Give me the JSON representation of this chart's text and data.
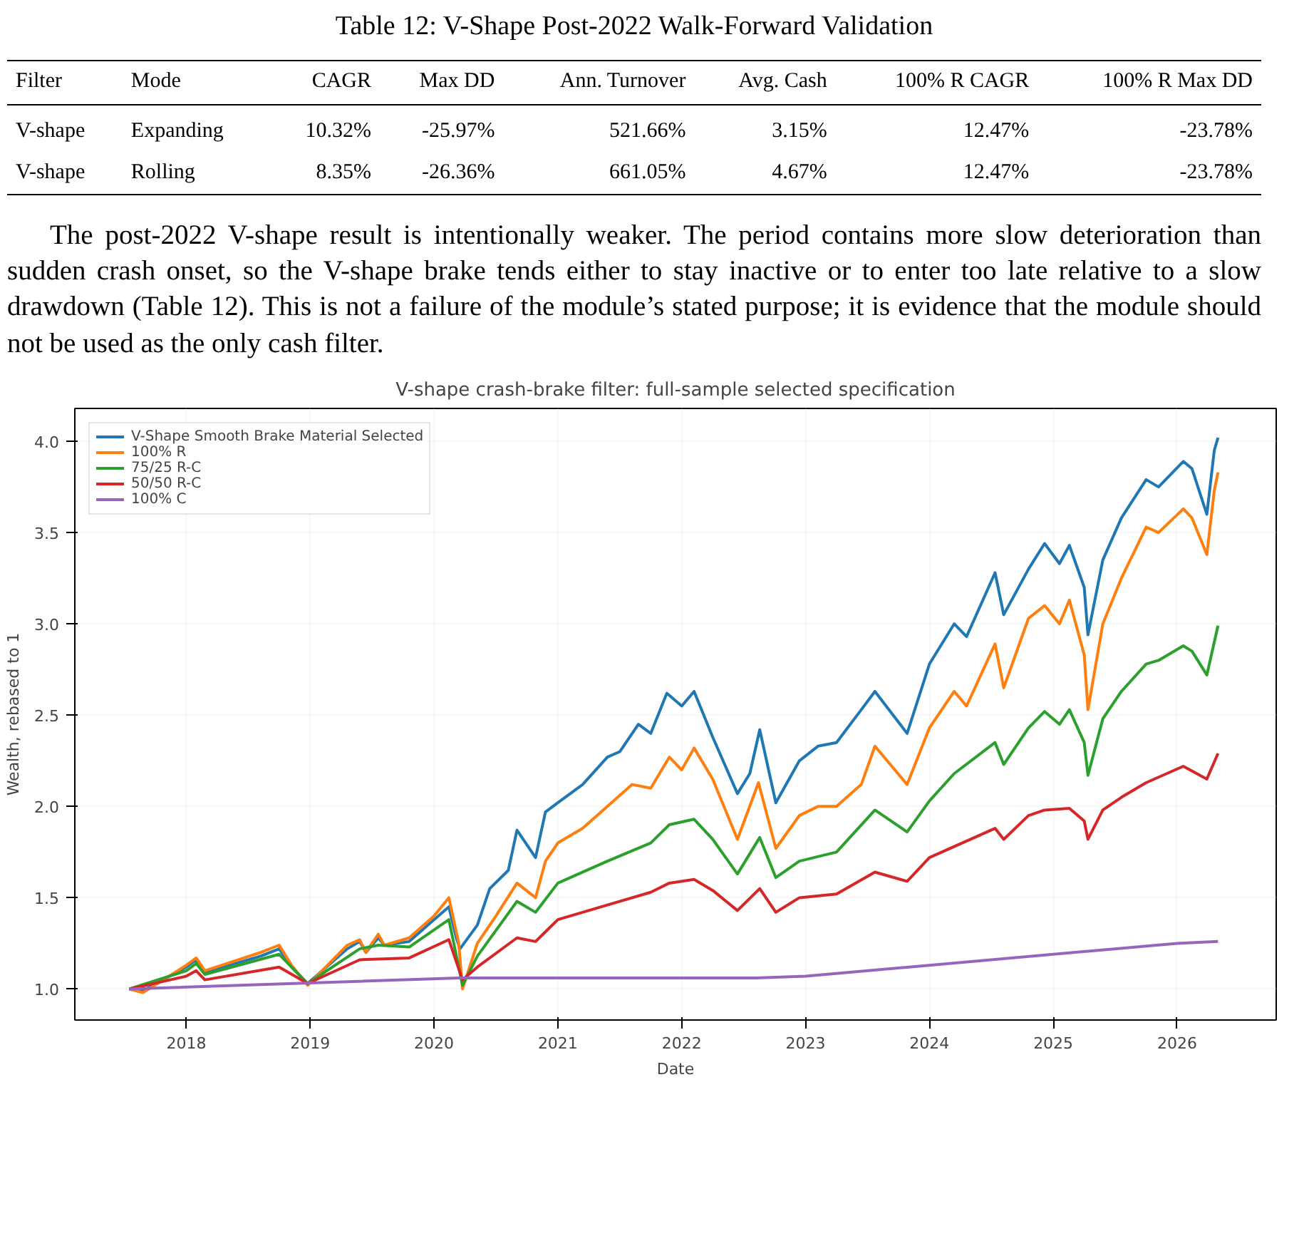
{
  "chart_data": {
    "type": "line",
    "title": "V-shape crash-brake filter: full-sample selected specification",
    "xlabel": "Date",
    "ylabel": "Wealth, rebased to 1",
    "annotations": [
      "Table 12: V-Shape Post-2022 Walk-Forward Validation",
      "Filter\tMode\tCAGR\tMax DD\tAnn. Turnover\tAvg. Cash\t100% R CAGR\t100% R Max DD",
      "V-shape\tExpanding\t10.32%\t-25.97%\t521.66%\t3.15%\t12.47%\t-23.78%",
      "V-shape\tRolling\t8.35%\t-26.36%\t661.05%\t4.67%\t12.47%\t-23.78%",
      "The post-2022 V-shape result is intentionally weaker. The period contains more slow deterioration than sudden crash onset, so the V-shape brake tends either to stay inactive or to enter too late relative to a slow drawdown (Table 12). This is not a failure of the module’s stated purpose; it is evidence that the module should not be used as the only cash filter."
    ],
    "xlim": [
      2017.1,
      2026.8
    ],
    "xticks": [
      2018,
      2019,
      2020,
      2021,
      2022,
      2023,
      2024,
      2025,
      2026
    ],
    "ylim": [
      0.83,
      4.18
    ],
    "yticks": [
      {
        "value": 1,
        "label": "1.0"
      },
      1.5,
      {
        "value": 2,
        "label": "2.0"
      },
      2.5,
      {
        "value": 3,
        "label": "3.0"
      },
      3.5,
      {
        "value": 4,
        "label": "4.0"
      }
    ],
    "grid": true,
    "legend": "top left",
    "line_style": "solid",
    "marker": "none",
    "series": [
      {
        "name": "V-Shape Smooth Brake Material Selected",
        "color": "#1f77b4",
        "x": [
          2017.54,
          2017.65,
          2018.0,
          2018.08,
          2018.15,
          2018.6,
          2018.75,
          2018.85,
          2018.98,
          2019.3,
          2019.4,
          2019.45,
          2019.55,
          2019.6,
          2019.8,
          2020.0,
          2020.12,
          2020.18,
          2020.21,
          2020.35,
          2020.45,
          2020.6,
          2020.67,
          2020.82,
          2020.9,
          2021.0,
          2021.2,
          2021.4,
          2021.5,
          2021.65,
          2021.75,
          2021.88,
          2022.0,
          2022.1,
          2022.25,
          2022.45,
          2022.55,
          2022.63,
          2022.76,
          2022.95,
          2023.1,
          2023.25,
          2023.45,
          2023.56,
          2023.82,
          2024.0,
          2024.2,
          2024.3,
          2024.53,
          2024.6,
          2024.8,
          2024.93,
          2025.05,
          2025.13,
          2025.25,
          2025.28,
          2025.4,
          2025.55,
          2025.75,
          2025.85,
          2026.05,
          2026.12,
          2026.24,
          2026.3,
          2026.33
        ],
        "values": [
          1.0,
          0.99,
          1.12,
          1.16,
          1.09,
          1.18,
          1.22,
          1.12,
          1.03,
          1.22,
          1.26,
          1.2,
          1.28,
          1.24,
          1.26,
          1.38,
          1.45,
          1.28,
          1.22,
          1.35,
          1.55,
          1.65,
          1.87,
          1.72,
          1.97,
          2.02,
          2.12,
          2.27,
          2.3,
          2.45,
          2.4,
          2.62,
          2.55,
          2.63,
          2.38,
          2.07,
          2.18,
          2.42,
          2.02,
          2.25,
          2.33,
          2.35,
          2.53,
          2.63,
          2.4,
          2.78,
          3.0,
          2.93,
          3.28,
          3.05,
          3.3,
          3.44,
          3.33,
          3.43,
          3.2,
          2.94,
          3.35,
          3.58,
          3.79,
          3.75,
          3.89,
          3.85,
          3.6,
          3.95,
          4.02
        ]
      },
      {
        "name": "100% R",
        "color": "#ff7f0e",
        "x": [
          2017.54,
          2017.65,
          2018.0,
          2018.08,
          2018.15,
          2018.6,
          2018.75,
          2018.85,
          2018.98,
          2019.3,
          2019.4,
          2019.45,
          2019.55,
          2019.6,
          2019.8,
          2020.0,
          2020.12,
          2020.2,
          2020.23,
          2020.35,
          2020.5,
          2020.67,
          2020.82,
          2020.9,
          2021.0,
          2021.2,
          2021.4,
          2021.6,
          2021.75,
          2021.9,
          2022.0,
          2022.1,
          2022.25,
          2022.45,
          2022.62,
          2022.76,
          2022.95,
          2023.1,
          2023.25,
          2023.45,
          2023.56,
          2023.82,
          2024.0,
          2024.2,
          2024.3,
          2024.53,
          2024.6,
          2024.8,
          2024.93,
          2025.05,
          2025.13,
          2025.25,
          2025.28,
          2025.4,
          2025.55,
          2025.75,
          2025.85,
          2026.05,
          2026.12,
          2026.24,
          2026.3,
          2026.33
        ],
        "values": [
          1.0,
          0.98,
          1.13,
          1.17,
          1.1,
          1.2,
          1.24,
          1.13,
          1.02,
          1.24,
          1.27,
          1.2,
          1.3,
          1.24,
          1.28,
          1.4,
          1.5,
          1.25,
          1.0,
          1.25,
          1.4,
          1.58,
          1.5,
          1.7,
          1.8,
          1.88,
          2.0,
          2.12,
          2.1,
          2.27,
          2.2,
          2.32,
          2.15,
          1.82,
          2.13,
          1.77,
          1.95,
          2.0,
          2.0,
          2.12,
          2.33,
          2.12,
          2.43,
          2.63,
          2.55,
          2.89,
          2.65,
          3.03,
          3.1,
          3.0,
          3.13,
          2.83,
          2.53,
          3.0,
          3.25,
          3.53,
          3.5,
          3.63,
          3.58,
          3.38,
          3.73,
          3.83
        ]
      },
      {
        "name": "75/25 R-C",
        "color": "#2ca02c",
        "x": [
          2017.54,
          2018.0,
          2018.08,
          2018.15,
          2018.75,
          2018.98,
          2019.4,
          2019.55,
          2019.8,
          2020.12,
          2020.23,
          2020.35,
          2020.67,
          2020.82,
          2021.0,
          2021.4,
          2021.75,
          2021.9,
          2022.1,
          2022.25,
          2022.45,
          2022.63,
          2022.76,
          2022.95,
          2023.25,
          2023.56,
          2023.82,
          2024.0,
          2024.2,
          2024.53,
          2024.6,
          2024.8,
          2024.93,
          2025.05,
          2025.13,
          2025.25,
          2025.28,
          2025.4,
          2025.55,
          2025.75,
          2025.85,
          2026.05,
          2026.12,
          2026.24,
          2026.33
        ],
        "values": [
          1.0,
          1.1,
          1.14,
          1.08,
          1.19,
          1.03,
          1.22,
          1.24,
          1.23,
          1.38,
          1.02,
          1.18,
          1.48,
          1.42,
          1.58,
          1.7,
          1.8,
          1.9,
          1.93,
          1.82,
          1.63,
          1.83,
          1.61,
          1.7,
          1.75,
          1.98,
          1.86,
          2.03,
          2.18,
          2.35,
          2.23,
          2.43,
          2.52,
          2.45,
          2.53,
          2.35,
          2.17,
          2.48,
          2.63,
          2.78,
          2.8,
          2.88,
          2.85,
          2.72,
          2.99
        ]
      },
      {
        "name": "50/50 R-C",
        "color": "#d62728",
        "x": [
          2017.54,
          2018.0,
          2018.08,
          2018.15,
          2018.75,
          2018.98,
          2019.4,
          2019.8,
          2020.12,
          2020.23,
          2020.35,
          2020.67,
          2020.82,
          2021.0,
          2021.4,
          2021.75,
          2021.9,
          2022.1,
          2022.25,
          2022.45,
          2022.63,
          2022.76,
          2022.95,
          2023.25,
          2023.56,
          2023.82,
          2024.0,
          2024.2,
          2024.53,
          2024.6,
          2024.8,
          2024.93,
          2025.13,
          2025.25,
          2025.28,
          2025.4,
          2025.55,
          2025.75,
          2026.05,
          2026.24,
          2026.33
        ],
        "values": [
          1.0,
          1.07,
          1.1,
          1.05,
          1.12,
          1.03,
          1.16,
          1.17,
          1.27,
          1.05,
          1.12,
          1.28,
          1.26,
          1.38,
          1.46,
          1.53,
          1.58,
          1.6,
          1.54,
          1.43,
          1.55,
          1.42,
          1.5,
          1.52,
          1.64,
          1.59,
          1.72,
          1.78,
          1.88,
          1.82,
          1.95,
          1.98,
          1.99,
          1.92,
          1.82,
          1.98,
          2.05,
          2.13,
          2.22,
          2.15,
          2.29
        ]
      },
      {
        "name": "100% C",
        "color": "#9467bd",
        "x": [
          2017.54,
          2020.2,
          2022.6,
          2023.0,
          2026.0,
          2026.33
        ],
        "values": [
          1.0,
          1.06,
          1.06,
          1.07,
          1.25,
          1.26
        ]
      }
    ]
  }
}
